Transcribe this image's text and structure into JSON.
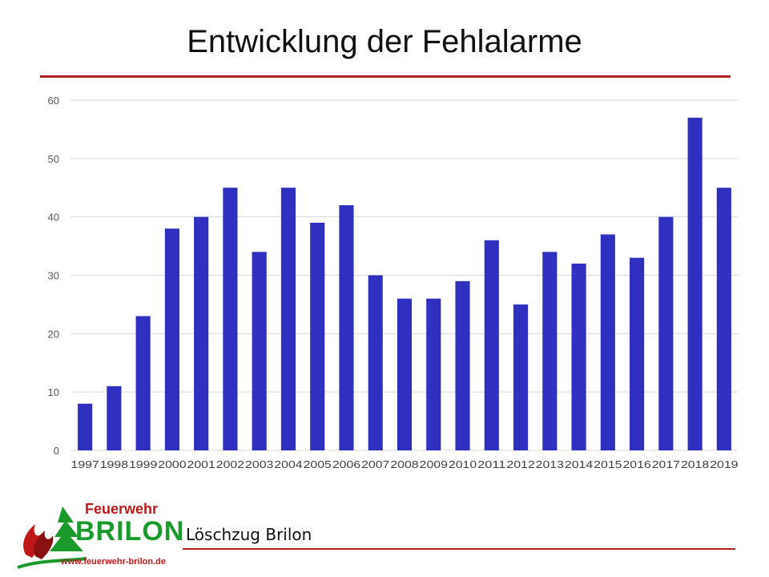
{
  "slide": {
    "title": "Entwicklung der Fehlalarme",
    "footer_text": "Löschzug Brilon"
  },
  "logo": {
    "name": "Feuerwehr",
    "city": "BRILON",
    "url": "www.feuerwehr-brilon.de"
  },
  "colors": {
    "bar": "#3030c0",
    "rule": "#b22222",
    "grid": "#d9d9d9"
  },
  "chart_data": {
    "type": "bar",
    "title": "",
    "xlabel": "",
    "ylabel": "",
    "categories": [
      "1997",
      "1998",
      "1999",
      "2000",
      "2001",
      "2002",
      "2003",
      "2004",
      "2005",
      "2006",
      "2007",
      "2008",
      "2009",
      "2010",
      "2011",
      "2012",
      "2013",
      "2014",
      "2015",
      "2016",
      "2017",
      "2018",
      "2019"
    ],
    "values": [
      8,
      11,
      23,
      38,
      40,
      45,
      34,
      45,
      39,
      42,
      30,
      26,
      26,
      29,
      36,
      25,
      34,
      32,
      37,
      33,
      40,
      57,
      45
    ],
    "ylim": [
      0,
      60
    ],
    "yticks": [
      0,
      10,
      20,
      30,
      40,
      50,
      60
    ],
    "grid": true,
    "legend": "none"
  }
}
